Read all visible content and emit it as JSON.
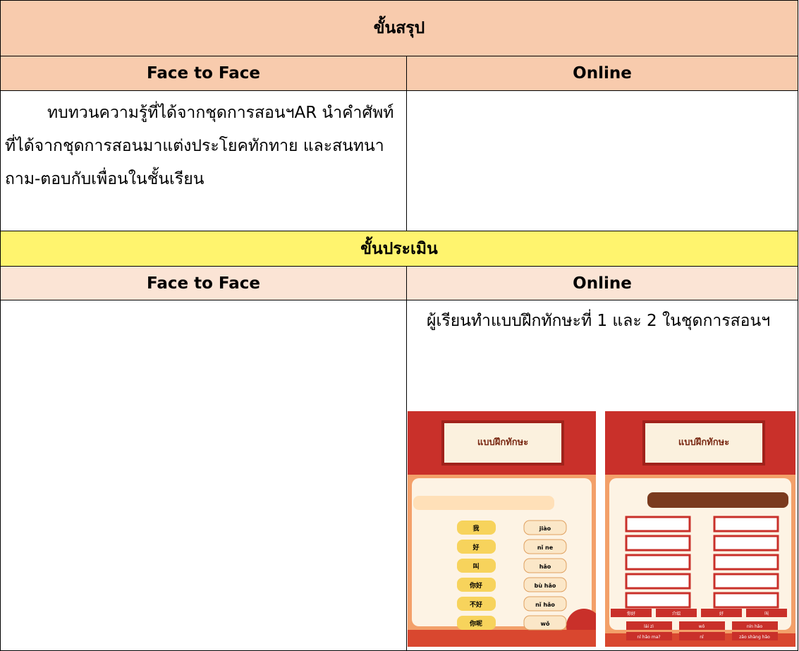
{
  "summary": {
    "title": "ขั้นสรุป",
    "face_to_face_header": "Face to Face",
    "online_header": "Online",
    "face_to_face_text": "ทบทวนความรู้ที่ได้จากชุดการสอนฯAR นำคำศัพท์ที่ได้จากชุดการสอนมาแต่งประโยคทักทาย และสนทนาถาม-ตอบกับเพื่อนในชั้นเรียน"
  },
  "evaluation": {
    "title": "ขั้นประเมิน",
    "face_to_face_header": "Face to Face",
    "online_header": "Online",
    "online_text": "ผู้เรียนทำแบบฝึกทักษะที่ 1 และ 2 ในชุดการสอนฯ",
    "worksheets": [
      {
        "title": "แบบฝึกทักษะ",
        "left_words": [
          "我",
          "好",
          "叫",
          "你好",
          "不好",
          "你呢"
        ],
        "right_words": [
          "jiào",
          "nǐ ne",
          "hǎo",
          "bù hǎo",
          "nǐ hǎo",
          "wǒ"
        ]
      },
      {
        "title": "แบบฝึกทักษะ",
        "top_words": [
          "你好",
          "介绍",
          "好",
          "叫"
        ],
        "bottom_words": [
          "lái zì",
          "wǒ",
          "nín hǎo",
          "nǐ hǎo ma?",
          "nǐ",
          "zǎo shàng hǎo"
        ]
      }
    ]
  }
}
